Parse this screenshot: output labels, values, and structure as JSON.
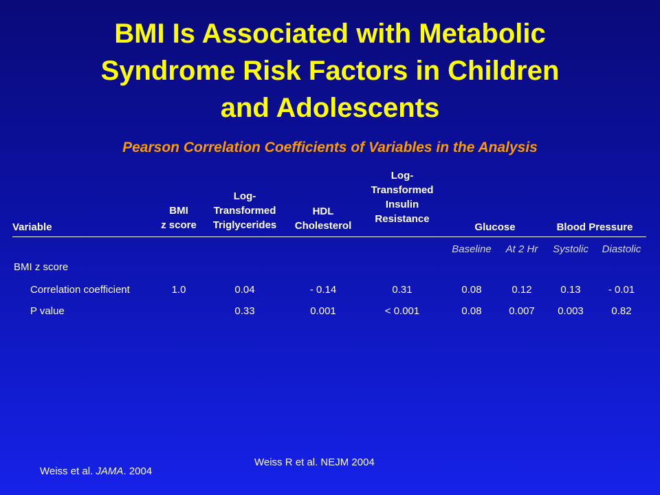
{
  "slide": {
    "title_lines": [
      "BMI Is Associated with Metabolic",
      "Syndrome Risk Factors in Children",
      "and Adolescents"
    ],
    "subtitle": "Pearson Correlation Coefficients of Variables in the Analysis"
  },
  "table": {
    "headers": {
      "variable": "Variable",
      "bmi": [
        "BMI",
        "z score"
      ],
      "tg": [
        "Log-",
        "Transformed",
        "Triglycerides"
      ],
      "hdl": [
        "HDL",
        "Cholesterol"
      ],
      "insulin": [
        "Log-",
        "Transformed",
        "Insulin",
        "Resistance"
      ],
      "glucose": "Glucose",
      "bp": "Blood Pressure"
    },
    "subheaders": [
      "Baseline",
      "At 2 Hr",
      "Systolic",
      "Diastolic"
    ],
    "section_label": "BMI z score",
    "rows": [
      {
        "label": "Correlation coefficient",
        "values": [
          "1.0",
          "0.04",
          "- 0.14",
          "0.31",
          "0.08",
          "0.12",
          "0.13",
          "- 0.01"
        ]
      },
      {
        "label": "P value",
        "values": [
          "",
          "0.33",
          "0.001",
          "< 0.001",
          "0.08",
          "0.007",
          "0.003",
          "0.82"
        ]
      }
    ]
  },
  "citations": {
    "center": "Weiss R et al. NEJM 2004",
    "left_prefix": "Weiss et al. ",
    "left_journal": "JAMA",
    "left_suffix": ". 2004"
  },
  "colors": {
    "title": "#ffff00",
    "subtitle": "#ff9900",
    "background_top": "#0a0a78",
    "background_bottom": "#1622e8"
  }
}
